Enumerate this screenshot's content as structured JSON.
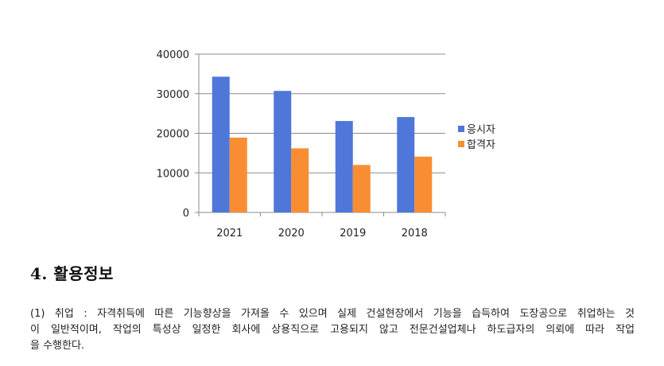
{
  "chart_data": {
    "type": "bar",
    "categories": [
      "2021",
      "2020",
      "2019",
      "2018"
    ],
    "series": [
      {
        "name": "응시자",
        "values": [
          34300,
          30700,
          23100,
          24100
        ],
        "color": "#4F77D9"
      },
      {
        "name": "합격자",
        "values": [
          18900,
          16200,
          12000,
          14100
        ],
        "color": "#F98D33"
      }
    ],
    "ylim": [
      0,
      40000
    ],
    "yticks": [
      "0",
      "10000",
      "20000",
      "30000",
      "40000"
    ],
    "grid": true,
    "legend": "right"
  },
  "section": {
    "title": "4. 활용정보",
    "lines": [
      "(1) 취업 : 자격취득에 따른 기능향상을 가져올 수 있으며 실제 건설현장에서 기능을 습득하여 도장공으로 취업하는 것",
      "이 일반적이며, 작업의 특성상 일정한 회사에 상용직으로 고용되지 않고 전문건설업체나 하도급자의 의뢰에 따라 작업",
      "을 수행한다."
    ]
  }
}
